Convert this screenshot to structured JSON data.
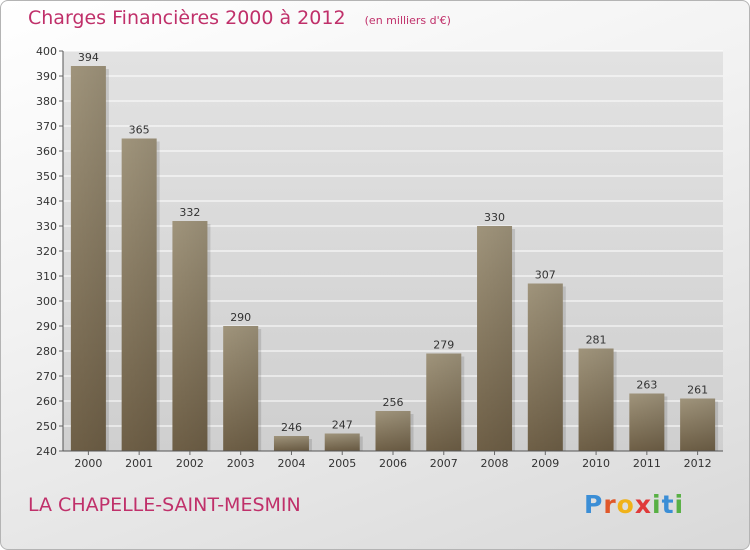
{
  "header": {
    "title": "Charges Financières 2000 à 2012",
    "subtitle": "(en milliers d'€)"
  },
  "footer": {
    "city": "LA CHAPELLE-SAINT-MESMIN"
  },
  "logo": {
    "text": "Proxiti",
    "letters": [
      "P",
      "r",
      "o",
      "x",
      "i",
      "t",
      "i"
    ],
    "colors": [
      "#3b8ed6",
      "#e0582a",
      "#f0b21a",
      "#e03a3a",
      "#58b044",
      "#3b8ed6",
      "#58b044"
    ]
  },
  "colors": {
    "title": "#c0306a",
    "bar_light": "#a89c82",
    "bar_dark": "#7b6a4d",
    "grid": "#ffffff"
  },
  "chart_data": {
    "type": "bar",
    "title": "Charges Financières 2000 à 2012",
    "subtitle": "(en milliers d'€)",
    "categories": [
      "2000",
      "2001",
      "2002",
      "2003",
      "2004",
      "2005",
      "2006",
      "2007",
      "2008",
      "2009",
      "2010",
      "2011",
      "2012"
    ],
    "values": [
      394,
      365,
      332,
      290,
      246,
      247,
      256,
      279,
      330,
      307,
      281,
      263,
      261
    ],
    "ylim": [
      240,
      400
    ],
    "yticks": [
      240,
      250,
      260,
      270,
      280,
      290,
      300,
      310,
      320,
      330,
      340,
      350,
      360,
      370,
      380,
      390,
      400
    ],
    "grid": true,
    "data_labels": true
  }
}
